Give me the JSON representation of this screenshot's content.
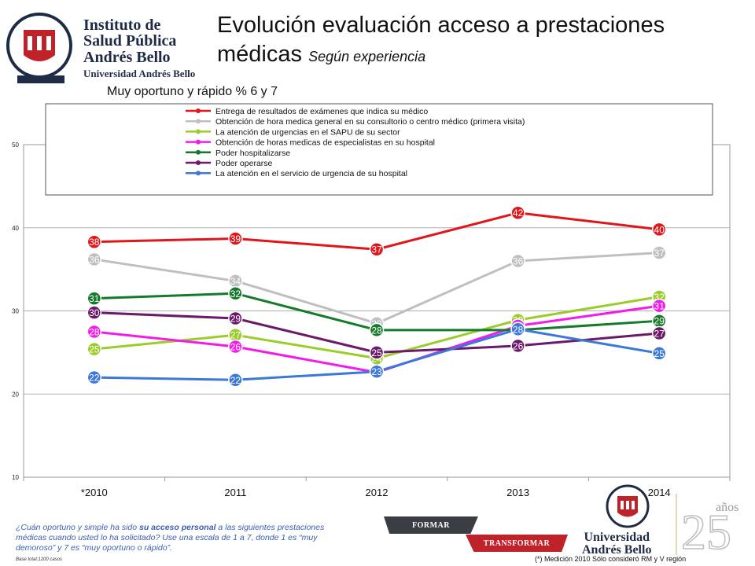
{
  "header": {
    "logo_line1": "Instituto de",
    "logo_line2": "Salud Pública",
    "logo_line3": "Andrés Bello",
    "logo_line4": "Universidad Andrés Bello",
    "title_main": "Evolución evaluación acceso a prestaciones médicas",
    "title_sub": "Según experiencia",
    "subtitle": "Muy oportuno y rápido % 6 y 7"
  },
  "chart_data": {
    "type": "line",
    "categories": [
      "*2010",
      "2011",
      "2012",
      "2013",
      "2014"
    ],
    "ylim": [
      10,
      50
    ],
    "yticks": [
      "10",
      "20",
      "30",
      "40",
      "50"
    ],
    "grid": true,
    "legend_placement": "top",
    "series": [
      {
        "name": "Entrega de resultados de exámenes que indica su médico",
        "color": "#e0161b",
        "values": [
          38.3,
          38.7,
          37.4,
          41.8,
          39.8
        ],
        "labels": [
          "38",
          "39",
          "37",
          "42",
          "40"
        ]
      },
      {
        "name": "Obtención de hora medica general en su consultorio o centro médico (primera visita)",
        "color": "#bfbfbf",
        "values": [
          36.2,
          33.6,
          28.5,
          36.0,
          37.0
        ],
        "labels": [
          "36",
          "34",
          "28",
          "36",
          "37"
        ]
      },
      {
        "name": "La atención de urgencias en el SAPU de su sector",
        "color": "#9acd2a",
        "values": [
          25.4,
          27.1,
          24.3,
          28.9,
          31.7
        ],
        "labels": [
          "25",
          "27",
          "24",
          "29",
          "32"
        ]
      },
      {
        "name": "Obtención de horas medicas de especialistas en su hospital",
        "color": "#f21ce8",
        "values": [
          27.5,
          25.7,
          22.6,
          28.2,
          30.6
        ],
        "labels": [
          "28",
          "26",
          "23",
          "28",
          "31"
        ]
      },
      {
        "name": "Poder hospitalizarse",
        "color": "#157a2a",
        "values": [
          31.5,
          32.1,
          27.7,
          27.7,
          28.8
        ],
        "labels": [
          "31",
          "32",
          "28",
          "28",
          "29"
        ]
      },
      {
        "name": "Poder operarse",
        "color": "#6b1a6b",
        "values": [
          29.8,
          29.1,
          25.0,
          25.8,
          27.3
        ],
        "labels": [
          "30",
          "29",
          "25",
          "26",
          "27"
        ]
      },
      {
        "name": "La atención en el servicio de urgencia de su hospital",
        "color": "#3c78d8",
        "values": [
          22.0,
          21.7,
          22.7,
          27.8,
          24.9
        ],
        "labels": [
          "22",
          "22",
          "23",
          "28",
          "25"
        ]
      }
    ]
  },
  "footer": {
    "question_pre": "¿Cuán oportuno y simple ha sido ",
    "question_bold": "su acceso personal",
    "question_post": " a las siguientes prestaciones médicas cuando usted lo ha solicitado? Use una escala de 1 a 7, donde 1 es “muy demoroso” y 7 es “muy oportuno o rápido”.",
    "base_note": "Base total:1200 casos",
    "footnote": "(*) Medición 2010 Sólo consideró RM y V región",
    "banner_formar": "FORMAR",
    "banner_transformar": "TRANSFORMAR",
    "uab_line1": "Universidad",
    "uab_line2": "Andrés Bello",
    "anniv_number": "25",
    "anniv_word": "años"
  }
}
